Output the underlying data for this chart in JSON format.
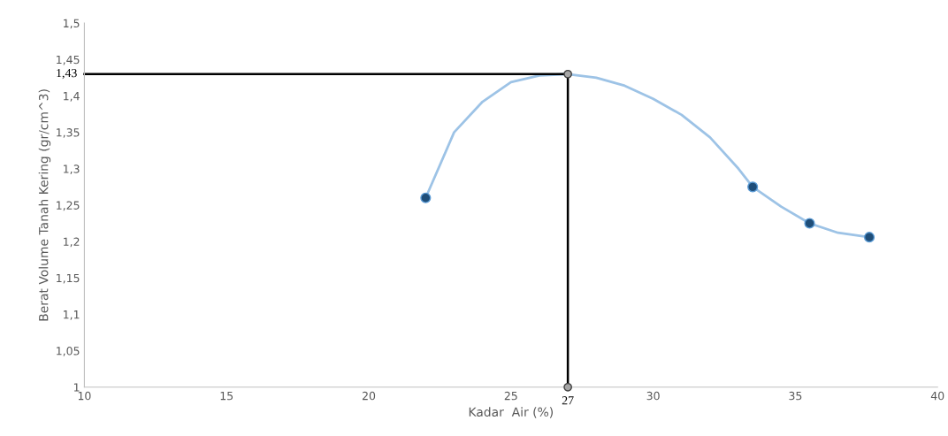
{
  "chart_data": {
    "type": "scatter",
    "xlabel": "Kadar  Air (%)",
    "ylabel": "Berat Volume Tanah Kering (gr/cm^3)",
    "xlim": [
      10,
      40
    ],
    "xticks": [
      10,
      15,
      20,
      25,
      30,
      35,
      40
    ],
    "ylim": [
      1,
      1.5
    ],
    "yticks": [
      {
        "value": 1,
        "label": "1"
      },
      {
        "value": 1.05,
        "label": "1,05"
      },
      {
        "value": 1.1,
        "label": "1,1"
      },
      {
        "value": 1.15,
        "label": "1,15"
      },
      {
        "value": 1.2,
        "label": "1,2"
      },
      {
        "value": 1.25,
        "label": "1,25"
      },
      {
        "value": 1.3,
        "label": "1,3"
      },
      {
        "value": 1.35,
        "label": "1,35"
      },
      {
        "value": 1.4,
        "label": "1,4"
      },
      {
        "value": 1.45,
        "label": "1,45"
      },
      {
        "value": 1.5,
        "label": "1,5"
      }
    ],
    "grid": false,
    "legend": false,
    "series": [
      {
        "type": "line",
        "color": "#9dc3e6",
        "marker": "none",
        "x": [
          22,
          23,
          24,
          25,
          26,
          27,
          28,
          29,
          30,
          31,
          32,
          33,
          33.5,
          34.5,
          35.5,
          36.5,
          37.6
        ],
        "values": [
          1.26,
          1.35,
          1.392,
          1.419,
          1.428,
          1.43,
          1.425,
          1.414,
          1.396,
          1.374,
          1.343,
          1.3,
          1.275,
          1.248,
          1.225,
          1.212,
          1.206
        ]
      },
      {
        "color": "#1f4e79",
        "marker": "circle",
        "x": [
          22,
          33.5,
          35.5,
          37.6
        ],
        "values": [
          1.26,
          1.275,
          1.225,
          1.206
        ]
      },
      {
        "color": "#a6a6a6",
        "marker": "circle",
        "x": [
          27,
          27
        ],
        "values": [
          1.43,
          1
        ]
      }
    ],
    "ref_lines": [
      {
        "axis": "y",
        "value": 1.43,
        "label": "1,43",
        "color": "#000000"
      },
      {
        "axis": "x",
        "value": 27,
        "label": "27",
        "color": "#000000"
      }
    ]
  }
}
